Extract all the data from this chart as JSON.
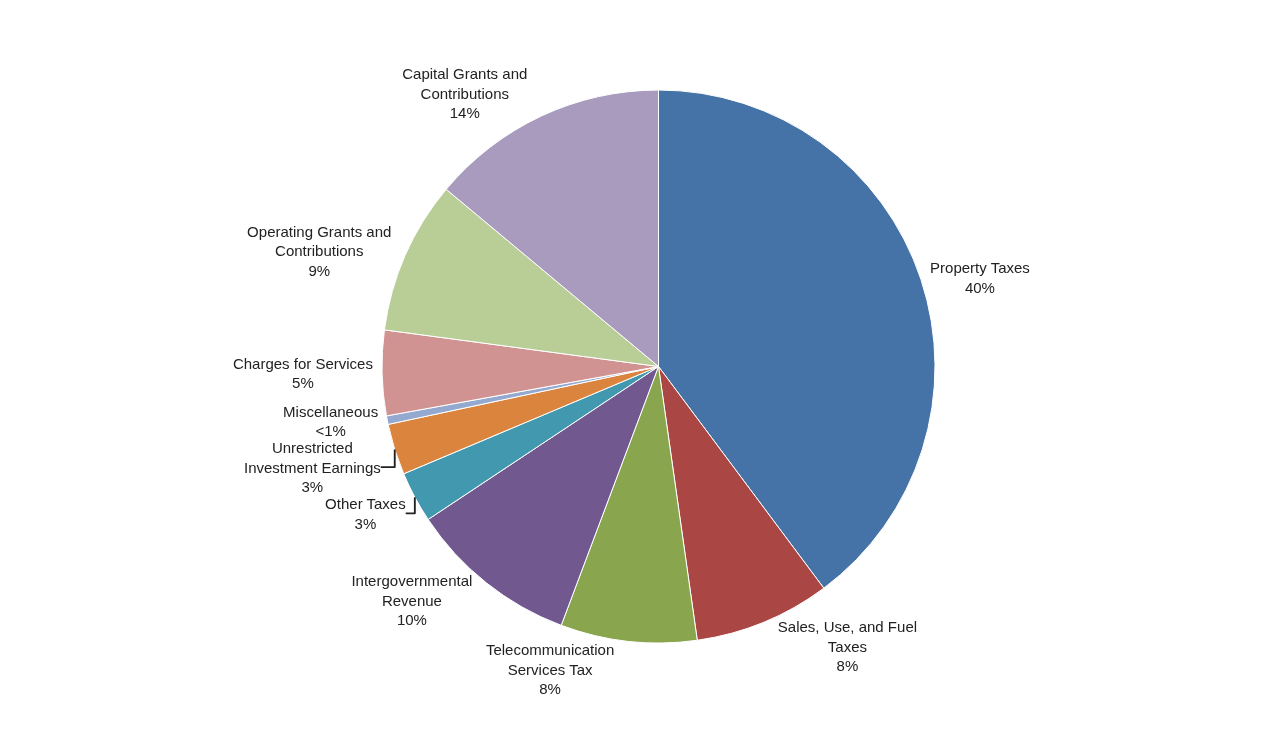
{
  "chart_data": {
    "type": "pie",
    "categories": [
      "Property Taxes",
      "Sales, Use, and Fuel Taxes",
      "Telecommunication Services Tax",
      "Intergovernmental Revenue",
      "Other Taxes",
      "Unrestricted Investment Earnings",
      "Miscellaneous",
      "Charges for Services",
      "Operating Grants and Contributions",
      "Capital Grants and Contributions"
    ],
    "values": [
      40,
      8,
      8,
      10,
      3,
      3,
      0.5,
      5,
      9,
      14
    ],
    "value_labels": [
      "40%",
      "8%",
      "8%",
      "10%",
      "3%",
      "3%",
      "<1%",
      "5%",
      "9%",
      "14%"
    ],
    "colors": [
      "#4572a7",
      "#aa4643",
      "#89a54e",
      "#71588f",
      "#4198af",
      "#db843d",
      "#93a9cf",
      "#d19392",
      "#b9cd96",
      "#a99bbd"
    ],
    "legend": false
  }
}
